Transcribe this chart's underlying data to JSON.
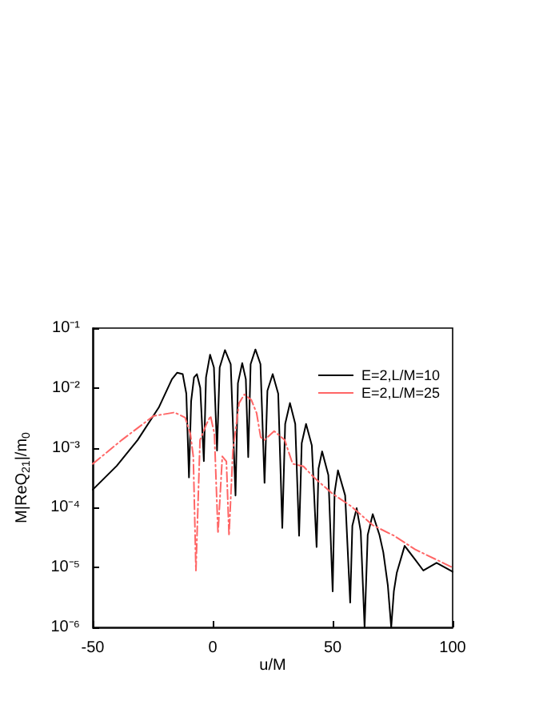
{
  "chart_data": {
    "type": "line",
    "xlabel": "u/M",
    "ylabel": "M|ReQ$_{21}$|/m$_{0}$",
    "log": "y",
    "grid": false,
    "legend": "top right",
    "marker": "none",
    "xlim": [
      -50,
      100
    ],
    "xticks": [
      -50,
      0,
      50,
      100
    ],
    "ylim": [
      1e-06,
      0.1
    ],
    "yticks": [
      {
        "value": 1e-06,
        "label": "10⁻⁶"
      },
      {
        "value": 1e-05,
        "label": "10⁻⁵"
      },
      {
        "value": 0.0001,
        "label": "10⁻⁴"
      },
      {
        "value": 0.001,
        "label": "10⁻³"
      },
      {
        "value": 0.01,
        "label": "10⁻²"
      },
      {
        "value": 0.1,
        "label": "10⁻¹"
      }
    ],
    "series": [
      {
        "name": "E=2,L/M=10",
        "color": "#000000",
        "line_style": "solid",
        "x": [
          -50,
          -40,
          -31.3,
          -22.5,
          -17,
          -14.8,
          -12.5,
          -11,
          -9.9,
          -9,
          -7.8,
          -6.6,
          -5.2,
          -3.7,
          -2.8,
          -1.1,
          0.5,
          1.8,
          2.9,
          5.1,
          7.5,
          9.5,
          10.5,
          12.3,
          13.8,
          14.8,
          15.8,
          17.8,
          19.9,
          21.6,
          22.8,
          25,
          27.3,
          29,
          30.2,
          32.2,
          34.4,
          36,
          37.1,
          38.9,
          41.3,
          43.3,
          44.1,
          45.6,
          48.2,
          50,
          50.8,
          52.2,
          55.2,
          57.3,
          58.2,
          60,
          61.7,
          63.3,
          64.6,
          66.7,
          69.5,
          71.1,
          73,
          74.4,
          75.5,
          76.7,
          80,
          84.4,
          87.8,
          93.3,
          100
        ],
        "values": [
          0.0002,
          0.0005,
          0.00135,
          0.0047,
          0.014,
          0.018,
          0.017,
          0.008,
          0.00032,
          0.006,
          0.015,
          0.017,
          0.01,
          0.0006,
          0.015,
          0.036,
          0.022,
          0.0009,
          0.022,
          0.043,
          0.025,
          0.00016,
          0.012,
          0.026,
          0.014,
          0.0007,
          0.025,
          0.044,
          0.025,
          0.00026,
          0.009,
          0.017,
          0.008,
          4.6e-05,
          0.0025,
          0.0056,
          0.0025,
          3.4e-05,
          0.0012,
          0.0025,
          0.0011,
          2.2e-05,
          0.00045,
          0.00087,
          0.00035,
          4e-06,
          0.00018,
          0.00042,
          0.00016,
          2.6e-06,
          5e-05,
          9.8e-05,
          4e-05,
          1e-06,
          3.5e-05,
          7.8e-05,
          3.5e-05,
          1.8e-05,
          5e-06,
          1e-06,
          4e-06,
          8.1e-06,
          2.3e-05,
          1.35e-05,
          8.9e-06,
          1.2e-05,
          8.5e-06
        ]
      },
      {
        "name": "E=2,L/M=25",
        "color": "#ff6666",
        "line_style": "dashed",
        "x": [
          -50,
          -37.9,
          -24.7,
          -15.9,
          -11.5,
          -9.3,
          -8.1,
          -7.0,
          -5.3,
          -2.6,
          -0.9,
          0.7,
          2.2,
          4.0,
          5.7,
          6.8,
          8.4,
          11,
          13.2,
          16.1,
          18.3,
          20,
          21.6,
          25.6,
          30,
          33.3,
          37.8,
          42.2,
          50,
          57.8,
          66.7,
          75.6,
          84.4,
          93.3,
          100
        ],
        "values": [
          0.00054,
          0.00135,
          0.0034,
          0.0039,
          0.0032,
          0.0017,
          0.00072,
          8.9e-06,
          0.00135,
          0.0025,
          0.0034,
          0.0017,
          3.7e-05,
          0.00072,
          0.00059,
          3.4e-05,
          0.00089,
          0.0056,
          0.0078,
          0.0063,
          0.0038,
          0.0015,
          0.00135,
          0.0019,
          0.00135,
          0.00054,
          0.00049,
          0.00032,
          0.00017,
          0.000105,
          5.1e-05,
          3.4e-05,
          2e-05,
          1.35e-05,
          1e-05
        ]
      }
    ]
  }
}
